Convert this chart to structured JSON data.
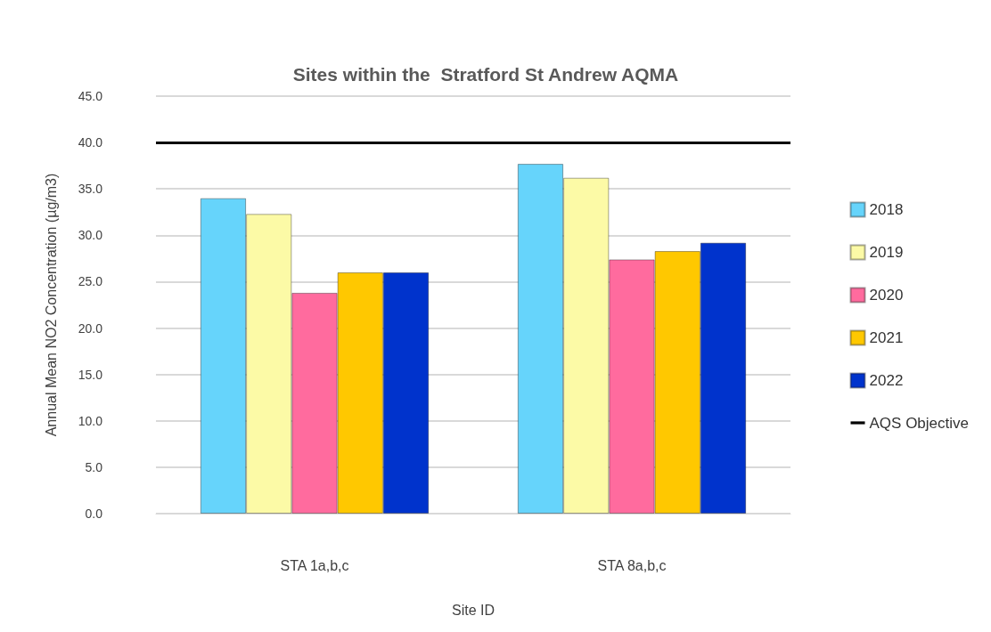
{
  "chart_data": {
    "type": "bar",
    "title": "Sites within the  Stratford St Andrew AQMA",
    "xlabel": "Site ID",
    "ylabel": "Annual Mean NO2 Concentration (µg/m3)",
    "categories": [
      "STA 1a,b,c",
      "STA 8a,b,c"
    ],
    "series": [
      {
        "name": "2018",
        "color": "#66d4fb",
        "values": [
          34.0,
          37.7
        ]
      },
      {
        "name": "2019",
        "color": "#fcfaa6",
        "values": [
          32.3,
          36.2
        ]
      },
      {
        "name": "2020",
        "color": "#ff6b9e",
        "values": [
          23.8,
          27.4
        ]
      },
      {
        "name": "2021",
        "color": "#ffc800",
        "values": [
          26.0,
          28.3
        ]
      },
      {
        "name": "2022",
        "color": "#0033cc",
        "values": [
          26.0,
          29.2
        ]
      }
    ],
    "ref_lines": [
      {
        "axis": "y",
        "value": 40.0,
        "label": "AQS Objective",
        "color": "#000000"
      }
    ],
    "ylim": [
      0,
      45
    ],
    "yticks": [
      {
        "value": 0,
        "label": "0.0"
      },
      {
        "value": 5,
        "label": "5.0"
      },
      {
        "value": 10,
        "label": "10.0"
      },
      {
        "value": 15,
        "label": "15.0"
      },
      {
        "value": 20,
        "label": "20.0"
      },
      {
        "value": 25,
        "label": "25.0"
      },
      {
        "value": 30,
        "label": "30.0"
      },
      {
        "value": 35,
        "label": "35.0"
      },
      {
        "value": 40,
        "label": "40.0"
      },
      {
        "value": 45,
        "label": "45.0"
      }
    ],
    "grid": "y",
    "legend": "right"
  }
}
